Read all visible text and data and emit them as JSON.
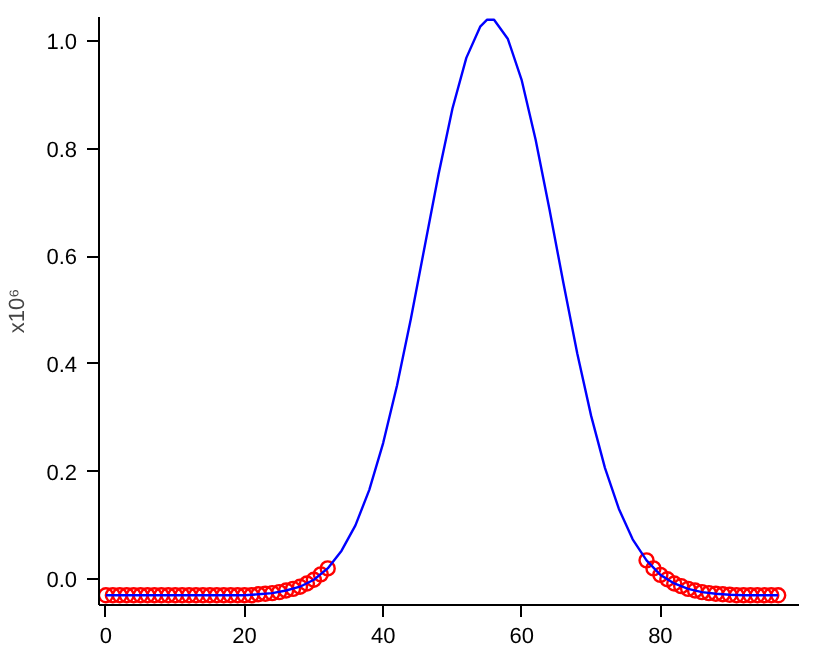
{
  "chart_data": {
    "type": "line",
    "ylabel": "x10⁶",
    "xlim": [
      -1,
      100
    ],
    "ylim": [
      -0.048,
      1.045
    ],
    "xticks": [
      0,
      20,
      40,
      60,
      80
    ],
    "yticks": [
      {
        "value": 0,
        "label": "0.0"
      },
      {
        "value": 0.2,
        "label": "0.2"
      },
      {
        "value": 0.4,
        "label": "0.4"
      },
      {
        "value": 0.6,
        "label": "0.6"
      },
      {
        "value": 0.8,
        "label": "0.8"
      },
      {
        "value": 1,
        "label": "1.0"
      }
    ],
    "grid": false,
    "series": [
      {
        "type": "scatter",
        "marker": "circle",
        "color": "#ff0000",
        "x": [
          0,
          1,
          2,
          3,
          4,
          5,
          6,
          7,
          8,
          9,
          10,
          11,
          12,
          13,
          14,
          15,
          16,
          17,
          18,
          19,
          20,
          21,
          22,
          23,
          24,
          25,
          26,
          27,
          28,
          29,
          30,
          31,
          32,
          78,
          79,
          80,
          81,
          82,
          83,
          84,
          85,
          86,
          87,
          88,
          89,
          90,
          91,
          92,
          93,
          94,
          95,
          96,
          97
        ],
        "values": [
          -0.03,
          -0.03,
          -0.03,
          -0.03,
          -0.03,
          -0.03,
          -0.03,
          -0.03,
          -0.03,
          -0.03,
          -0.03,
          -0.03,
          -0.03,
          -0.03,
          -0.03,
          -0.03,
          -0.03,
          -0.03,
          -0.03,
          -0.03,
          -0.03,
          -0.03,
          -0.028,
          -0.027,
          -0.026,
          -0.024,
          -0.021,
          -0.018,
          -0.014,
          -0.008,
          -0.001,
          0.009,
          0.02,
          0.035,
          0.02,
          0.008,
          0.0,
          -0.008,
          -0.013,
          -0.018,
          -0.021,
          -0.024,
          -0.026,
          -0.027,
          -0.028,
          -0.029,
          -0.03,
          -0.03,
          -0.03,
          -0.03,
          -0.03,
          -0.03,
          -0.03
        ]
      },
      {
        "line_style": "solid",
        "color": "#0000ff",
        "x": [
          0,
          2,
          4,
          6,
          8,
          10,
          12,
          14,
          16,
          18,
          20,
          22,
          24,
          26,
          28,
          30,
          32,
          34,
          36,
          38,
          40,
          42,
          44,
          46,
          48,
          50,
          52,
          54,
          55,
          56,
          58,
          60,
          62,
          64,
          66,
          68,
          70,
          72,
          74,
          76,
          78,
          80,
          82,
          84,
          86,
          88,
          90,
          92,
          94,
          96,
          97
        ],
        "values": [
          -0.03,
          -0.03,
          -0.03,
          -0.03,
          -0.03,
          -0.03,
          -0.03,
          -0.03,
          -0.03,
          -0.03,
          -0.03,
          -0.028,
          -0.026,
          -0.021,
          -0.014,
          -0.001,
          0.02,
          0.053,
          0.1,
          0.166,
          0.253,
          0.36,
          0.484,
          0.619,
          0.753,
          0.875,
          0.969,
          1.027,
          1.04,
          1.04,
          1.004,
          0.927,
          0.817,
          0.687,
          0.551,
          0.42,
          0.304,
          0.207,
          0.131,
          0.074,
          0.035,
          0.008,
          -0.008,
          -0.018,
          -0.024,
          -0.027,
          -0.029,
          -0.03,
          -0.03,
          -0.03,
          -0.03
        ]
      }
    ]
  }
}
